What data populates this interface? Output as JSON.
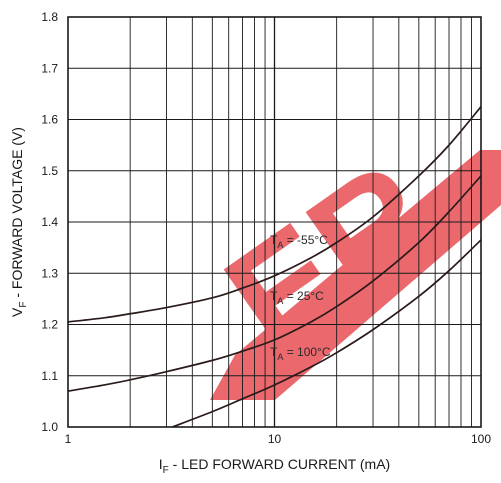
{
  "chart_data": {
    "type": "line",
    "title": "",
    "xlabel_main": "I",
    "xlabel_sub": "F",
    "xlabel_rest": " - LED FORWARD CURRENT (mA)",
    "ylabel_main": "V",
    "ylabel_sub": "F",
    "ylabel_rest": " - FORWARD VOLTAGE (V)",
    "x_scale": "log",
    "xlim": [
      1,
      100
    ],
    "ylim": [
      1.0,
      1.8
    ],
    "grid": true,
    "x_tick_labels": [
      "1",
      "10",
      "100"
    ],
    "y_tick_labels": [
      "1.0",
      "1.1",
      "1.2",
      "1.3",
      "1.4",
      "1.5",
      "1.6",
      "1.7",
      "1.8"
    ],
    "series": [
      {
        "label_main": "T",
        "label_sub": "A",
        "label_rest": " = -55°C",
        "x": [
          1,
          1.5,
          2,
          3,
          5,
          7,
          10,
          15,
          20,
          30,
          50,
          70,
          100
        ],
        "y": [
          1.205,
          1.213,
          1.221,
          1.233,
          1.252,
          1.271,
          1.295,
          1.33,
          1.36,
          1.41,
          1.49,
          1.55,
          1.625
        ]
      },
      {
        "label_main": "T",
        "label_sub": "A",
        "label_rest": " = 25°C",
        "x": [
          1,
          1.5,
          2,
          3,
          5,
          7,
          10,
          15,
          20,
          30,
          50,
          70,
          100
        ],
        "y": [
          1.07,
          1.082,
          1.092,
          1.108,
          1.13,
          1.148,
          1.17,
          1.205,
          1.235,
          1.285,
          1.36,
          1.42,
          1.49
        ]
      },
      {
        "label_main": "T",
        "label_sub": "A",
        "label_rest": " = 100°C",
        "x": [
          3.2,
          5,
          7,
          10,
          15,
          20,
          30,
          50,
          70,
          100
        ],
        "y": [
          1.0,
          1.03,
          1.055,
          1.082,
          1.117,
          1.145,
          1.19,
          1.255,
          1.305,
          1.365
        ]
      }
    ],
    "watermark_text": "ER",
    "colors": {
      "curve": "#2a1a1a",
      "grid": "#1a1a1a",
      "watermark": "#e7484e"
    }
  }
}
